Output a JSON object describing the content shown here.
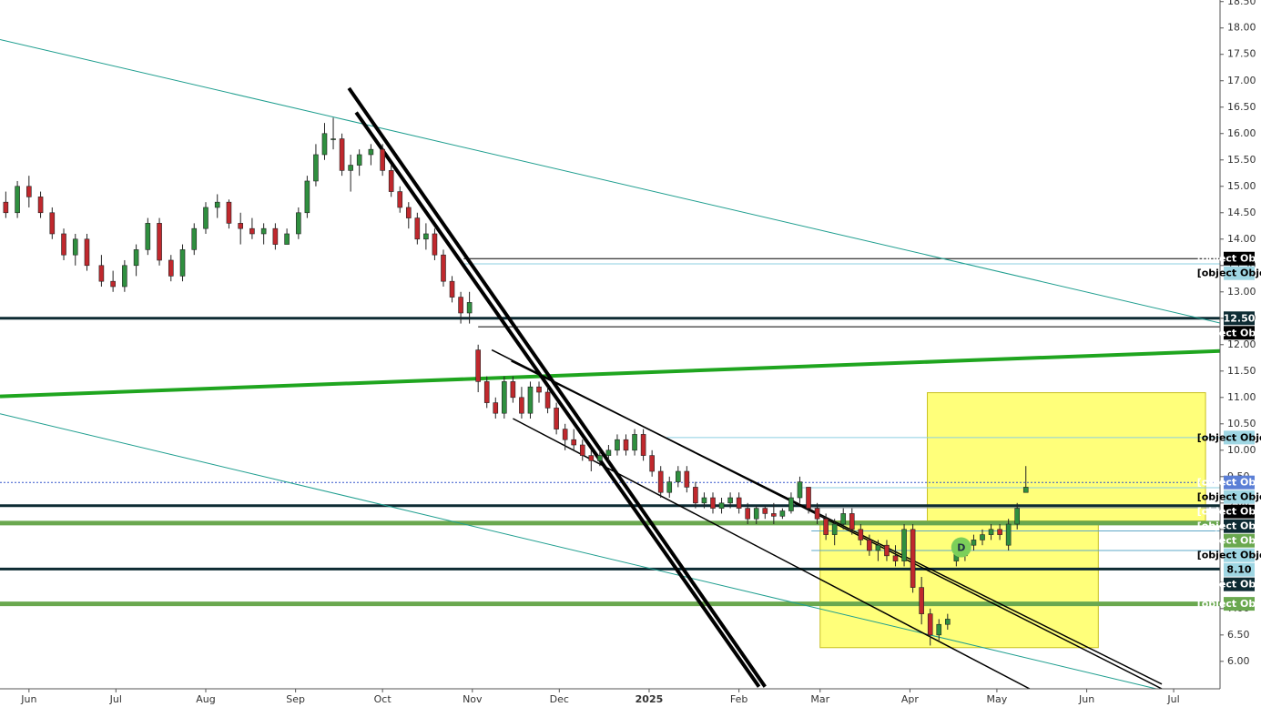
{
  "chart_data": {
    "type": "candlestick",
    "xlim": [
      -10,
      411
    ],
    "ylim": [
      5.48,
      18.53
    ],
    "xticks": [
      {
        "value": 0,
        "label": "Jun"
      },
      {
        "value": 30,
        "label": "Jul"
      },
      {
        "value": 61,
        "label": "Aug"
      },
      {
        "value": 92,
        "label": "Sep"
      },
      {
        "value": 122,
        "label": "Oct"
      },
      {
        "value": 153,
        "label": "Nov"
      },
      {
        "value": 183,
        "label": "Dec"
      },
      {
        "value": 214,
        "label": "2025"
      },
      {
        "value": 245,
        "label": "Feb"
      },
      {
        "value": 273,
        "label": "Mar"
      },
      {
        "value": 304,
        "label": "Apr"
      },
      {
        "value": 334,
        "label": "May"
      },
      {
        "value": 365,
        "label": "Jun"
      },
      {
        "value": 395,
        "label": "Jul"
      }
    ],
    "yticks": [
      {
        "value": 6,
        "label": "6.00"
      },
      {
        "value": 6.5,
        "label": "6.50"
      },
      {
        "value": 7,
        "label": "7.00"
      },
      {
        "value": 7.5,
        "label": "7.50"
      },
      {
        "value": 8,
        "label": "8.00"
      },
      {
        "value": 8.5,
        "label": "8.50"
      },
      {
        "value": 9,
        "label": "9.00"
      },
      {
        "value": 9.5,
        "label": "9.50"
      },
      {
        "value": 10,
        "label": "10.00"
      },
      {
        "value": 10.5,
        "label": "10.50"
      },
      {
        "value": 11,
        "label": "11.00"
      },
      {
        "value": 11.5,
        "label": "11.50"
      },
      {
        "value": 12,
        "label": "12.00"
      },
      {
        "value": 12.5,
        "label": "12.50"
      },
      {
        "value": 13,
        "label": "13.00"
      },
      {
        "value": 13.5,
        "label": "13.50"
      },
      {
        "value": 14,
        "label": "14.00"
      },
      {
        "value": 14.5,
        "label": "14.50"
      },
      {
        "value": 15,
        "label": "15.00"
      },
      {
        "value": 15.5,
        "label": "15.50"
      },
      {
        "value": 16,
        "label": "16.00"
      },
      {
        "value": 16.5,
        "label": "16.50"
      },
      {
        "value": 17,
        "label": "17.00"
      },
      {
        "value": 17.5,
        "label": "17.50"
      },
      {
        "value": 18,
        "label": "18.00"
      },
      {
        "value": 18.5,
        "label": "18.50"
      }
    ],
    "up_color": "#2f8f3f",
    "down_color": "#c0282d",
    "candles": {
      "x": [
        -8,
        -4,
        0,
        4,
        8,
        12,
        16,
        20,
        25,
        29,
        33,
        37,
        41,
        45,
        49,
        53,
        57,
        61,
        65,
        69,
        73,
        77,
        81,
        85,
        89,
        93,
        96,
        99,
        102,
        105,
        108,
        111,
        114,
        118,
        122,
        125,
        128,
        131,
        134,
        137,
        140,
        143,
        146,
        149,
        152,
        155,
        158,
        161,
        164,
        167,
        170,
        173,
        176,
        179,
        182,
        185,
        188,
        191,
        194,
        197,
        200,
        203,
        206,
        209,
        212,
        215,
        218,
        221,
        224,
        227,
        230,
        233,
        236,
        239,
        242,
        245,
        248,
        251,
        254,
        257,
        260,
        263,
        266,
        269,
        272,
        275,
        278,
        281,
        284,
        287,
        290,
        293,
        296,
        299,
        302,
        305,
        308,
        311,
        314,
        317,
        320,
        323,
        326,
        329,
        332,
        335,
        338,
        341,
        344
      ],
      "open": [
        14.7,
        14.5,
        15.0,
        14.8,
        14.5,
        14.1,
        13.7,
        14.0,
        13.5,
        13.2,
        13.1,
        13.5,
        13.8,
        14.3,
        13.6,
        13.3,
        13.8,
        14.2,
        14.6,
        14.7,
        14.3,
        14.2,
        14.1,
        14.2,
        13.9,
        14.1,
        14.5,
        15.1,
        15.6,
        15.9,
        15.9,
        15.3,
        15.4,
        15.6,
        15.7,
        15.3,
        14.9,
        14.6,
        14.4,
        14.0,
        14.1,
        13.7,
        13.2,
        12.9,
        12.6,
        11.9,
        11.3,
        10.9,
        10.7,
        11.3,
        11.0,
        10.7,
        11.2,
        11.1,
        10.8,
        10.4,
        10.2,
        10.1,
        9.9,
        9.8,
        9.9,
        10.0,
        10.2,
        10.0,
        10.3,
        9.9,
        9.6,
        9.2,
        9.4,
        9.6,
        9.3,
        9.0,
        9.1,
        8.9,
        9.0,
        9.1,
        8.9,
        8.7,
        8.9,
        8.8,
        8.75,
        8.85,
        9.1,
        9.3,
        8.9,
        8.7,
        8.4,
        8.6,
        8.8,
        8.5,
        8.3,
        8.1,
        8.2,
        8.0,
        7.9,
        8.5,
        7.4,
        6.9,
        6.5,
        6.7,
        7.9,
        8.0,
        8.2,
        8.3,
        8.4,
        8.5,
        8.2,
        8.6,
        9.2
      ],
      "high": [
        14.9,
        15.1,
        15.2,
        14.9,
        14.6,
        14.2,
        14.1,
        14.1,
        13.7,
        13.4,
        13.6,
        13.9,
        14.4,
        14.4,
        13.7,
        13.9,
        14.3,
        14.7,
        14.85,
        14.75,
        14.5,
        14.4,
        14.3,
        14.3,
        14.2,
        14.6,
        15.2,
        15.8,
        16.2,
        16.3,
        16.0,
        15.6,
        15.7,
        15.8,
        15.8,
        15.4,
        15.0,
        14.7,
        14.5,
        14.3,
        14.2,
        13.8,
        13.3,
        13.0,
        13.0,
        12.0,
        11.4,
        11.0,
        11.4,
        11.4,
        11.2,
        11.3,
        11.3,
        11.2,
        10.9,
        10.5,
        10.4,
        10.2,
        10.0,
        10.0,
        10.1,
        10.3,
        10.3,
        10.4,
        10.4,
        10.0,
        9.7,
        9.5,
        9.7,
        9.7,
        9.4,
        9.2,
        9.2,
        9.1,
        9.2,
        9.2,
        9.0,
        8.95,
        8.95,
        9.0,
        8.9,
        9.2,
        9.5,
        9.3,
        9.0,
        8.8,
        8.7,
        8.9,
        8.9,
        8.6,
        8.4,
        8.3,
        8.3,
        8.2,
        8.6,
        8.6,
        7.6,
        7.0,
        6.8,
        6.9,
        8.2,
        8.3,
        8.4,
        8.5,
        8.6,
        8.6,
        8.7,
        9.0,
        9.7
      ],
      "low": [
        14.4,
        14.4,
        14.6,
        14.4,
        14.0,
        13.6,
        13.5,
        13.4,
        13.1,
        13.0,
        13.0,
        13.3,
        13.7,
        13.5,
        13.2,
        13.2,
        13.7,
        14.1,
        14.4,
        14.2,
        13.9,
        14.0,
        13.9,
        13.8,
        13.9,
        14.0,
        14.4,
        15.0,
        15.5,
        15.7,
        15.2,
        14.9,
        15.2,
        15.4,
        15.2,
        14.8,
        14.5,
        14.2,
        13.9,
        13.8,
        13.6,
        13.1,
        12.8,
        12.4,
        12.4,
        11.1,
        10.8,
        10.6,
        10.6,
        10.9,
        10.6,
        10.6,
        10.9,
        10.7,
        10.3,
        10.0,
        10.0,
        9.8,
        9.6,
        9.7,
        9.8,
        9.9,
        9.9,
        9.9,
        9.8,
        9.5,
        9.1,
        9.1,
        9.3,
        9.2,
        8.9,
        8.9,
        8.8,
        8.8,
        8.9,
        8.8,
        8.6,
        8.6,
        8.7,
        8.6,
        8.7,
        8.8,
        9.0,
        8.8,
        8.6,
        8.3,
        8.2,
        8.5,
        8.4,
        8.2,
        8.0,
        7.9,
        7.9,
        7.8,
        7.8,
        7.3,
        6.7,
        6.3,
        6.4,
        6.6,
        7.8,
        7.9,
        8.1,
        8.2,
        8.3,
        8.3,
        8.1,
        8.5,
        9.2
      ],
      "close": [
        14.5,
        15.0,
        14.8,
        14.5,
        14.1,
        13.7,
        14.0,
        13.5,
        13.2,
        13.1,
        13.5,
        13.8,
        14.3,
        13.6,
        13.3,
        13.8,
        14.2,
        14.6,
        14.7,
        14.3,
        14.2,
        14.1,
        14.2,
        13.9,
        14.1,
        14.5,
        15.1,
        15.6,
        16.0,
        15.9,
        15.3,
        15.4,
        15.6,
        15.7,
        15.3,
        14.9,
        14.6,
        14.4,
        14.0,
        14.1,
        13.7,
        13.2,
        12.9,
        12.6,
        12.8,
        11.3,
        10.9,
        10.7,
        11.3,
        11.0,
        10.7,
        11.2,
        11.1,
        10.8,
        10.4,
        10.2,
        10.1,
        9.9,
        9.8,
        9.9,
        10.0,
        10.2,
        10.0,
        10.3,
        9.9,
        9.6,
        9.2,
        9.4,
        9.6,
        9.3,
        9.0,
        9.1,
        8.9,
        9.0,
        9.1,
        8.9,
        8.7,
        8.9,
        8.8,
        8.75,
        8.85,
        9.1,
        9.4,
        8.9,
        8.7,
        8.4,
        8.6,
        8.8,
        8.5,
        8.3,
        8.1,
        8.2,
        8.0,
        7.9,
        8.5,
        7.4,
        6.9,
        6.5,
        6.7,
        6.8,
        8.1,
        8.2,
        8.3,
        8.4,
        8.5,
        8.4,
        8.6,
        8.9,
        9.3
      ]
    },
    "boxes": [
      {
        "x": [
          310,
          406
        ],
        "y": [
          8.66,
          11.09
        ],
        "color": "#ffff33"
      },
      {
        "x": [
          273,
          369
        ],
        "y": [
          6.26,
          8.66
        ],
        "color": "#ffff33"
      }
    ],
    "trendlines": [
      {
        "x": [
          -10,
          411
        ],
        "y": [
          17.78,
          12.41
        ],
        "color": "#1f9e8f",
        "width": 1
      },
      {
        "x": [
          -10,
          389
        ],
        "y": [
          10.69,
          5.48
        ],
        "color": "#1f9e8f",
        "width": 1
      },
      {
        "x": [
          -10,
          411
        ],
        "y": [
          11.02,
          11.88
        ],
        "color": "#1fa51f",
        "width": 4
      },
      {
        "x": [
          110.4,
          254
        ],
        "y": [
          16.86,
          5.52
        ],
        "color": "#000000",
        "width": 4
      },
      {
        "x": [
          112.9,
          251.9
        ],
        "y": [
          16.4,
          5.52
        ],
        "color": "#000000",
        "width": 4
      },
      {
        "x": [
          159.7,
          390.9
        ],
        "y": [
          11.9,
          5.48
        ],
        "color": "#000000",
        "width": 1.5
      },
      {
        "x": [
          166.4,
          390.9
        ],
        "y": [
          11.69,
          5.57
        ],
        "color": "#000000",
        "width": 1.5
      },
      {
        "x": [
          167,
          345.3
        ],
        "y": [
          10.6,
          5.48
        ],
        "color": "#000000",
        "width": 1.5
      }
    ],
    "levels": [
      {
        "value": 13.63,
        "color": "#000000",
        "width": 1,
        "from": 150,
        "bg": "#000000",
        "fg": "#ffffff"
      },
      {
        "value": 13.53,
        "color": "#8ccfe0",
        "width": 1,
        "from": 150,
        "bg": "#9fd6e3",
        "fg": "#000000"
      },
      {
        "value": 12.5,
        "label": "12.50",
        "color": "#0d2b33",
        "width": 3,
        "from": -10,
        "bg": "#0d2b33",
        "fg": "#ffffff"
      },
      {
        "value": 12.34,
        "color": "#000000",
        "width": 1,
        "from": 155,
        "bg": "#000000",
        "fg": "#ffffff"
      },
      {
        "value": 10.24,
        "color": "#8ccfe0",
        "width": 1,
        "from": 220,
        "bg": "#9fd6e3",
        "fg": "#000000"
      },
      {
        "value": 9.39,
        "color": "#3355cc",
        "width": 1,
        "from": -10,
        "dash": true,
        "bg": "#5b7fd6",
        "fg": "#ffffff"
      },
      {
        "value": 9.29,
        "color": "#8ccfe0",
        "width": 1,
        "from": 266,
        "bg": "#9fd6e3",
        "fg": "#000000"
      },
      {
        "value": 8.95,
        "color": "#0d2b33",
        "width": 3,
        "from": -10,
        "bg": "#000000",
        "fg": "#ffffff"
      },
      {
        "value": 8.91,
        "color": "#8c9aa0",
        "width": 1,
        "from": 270,
        "bg": "#0d2b33",
        "fg": "#ffffff"
      },
      {
        "value": 8.62,
        "color": "#6aa84f",
        "width": 5,
        "from": -10,
        "bg": "#6aa84f",
        "fg": "#ffffff"
      },
      {
        "value": 8.47,
        "color": "#5fa8c8",
        "width": 1,
        "from": 270,
        "bg": "#9fd6e3",
        "fg": "#000000"
      },
      {
        "value": 8.1,
        "label": "8.10",
        "color": "#5fa8c8",
        "width": 1,
        "from": 270,
        "bg": "#9fd6e3",
        "fg": "#000000"
      },
      {
        "value": 7.75,
        "color": "#0d2b33",
        "width": 3,
        "from": -10,
        "bg": "#0d2b33",
        "fg": "#ffffff"
      },
      {
        "value": 7.09,
        "color": "#6aa84f",
        "width": 5,
        "from": -10,
        "bg": "#6aa84f",
        "fg": "#ffffff"
      }
    ],
    "markers": [
      {
        "label": "D",
        "x": 321.7,
        "y": 8.16,
        "color": "#7ccf5a"
      }
    ]
  }
}
